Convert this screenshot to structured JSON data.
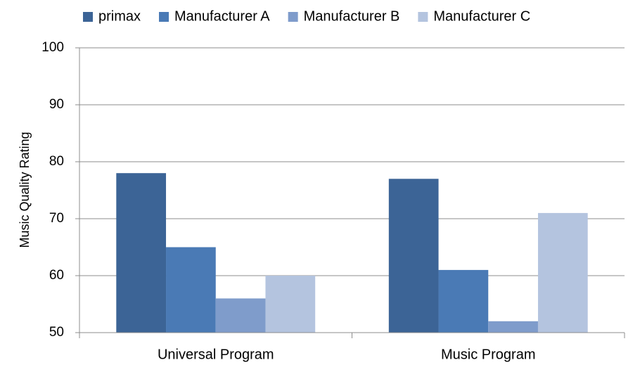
{
  "chart_data": {
    "type": "bar",
    "y_label": "Music Quality Rating",
    "categories": [
      "Universal Program",
      "Music Program"
    ],
    "series": [
      {
        "name": "primax",
        "color": "#3c6496",
        "values": [
          78,
          77
        ]
      },
      {
        "name": "Manufacturer A",
        "color": "#4a7ab5",
        "values": [
          65,
          61
        ]
      },
      {
        "name": "Manufacturer B",
        "color": "#7f9ccb",
        "values": [
          56,
          52
        ]
      },
      {
        "name": "Manufacturer C",
        "color": "#b4c4df",
        "values": [
          60,
          71
        ]
      }
    ],
    "ylim": [
      50,
      100
    ],
    "yticks": [
      50,
      60,
      70,
      80,
      90,
      100
    ],
    "grid": true,
    "legend": "top"
  }
}
